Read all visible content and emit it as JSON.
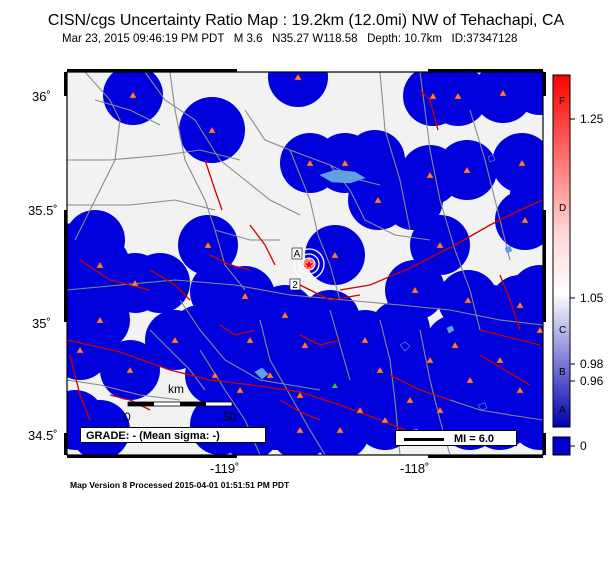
{
  "header": {
    "title": "CISN/cgs Uncertainty Ratio Map : 19.2km (12.0mi) NW of Tehachapi, CA",
    "subtitle": "Mar 23, 2015 09:46:19 PM PDT   M 3.6   N35.27 W118.58   Depth: 10.7km   ID:37347128"
  },
  "map": {
    "lat_labels": [
      "36˚",
      "35.5˚",
      "35˚",
      "34.5˚"
    ],
    "lon_labels": [
      "-119˚",
      "-118˚"
    ],
    "grade_box": "GRADE: - (Mean sigma: -)",
    "mi_legend": "MI = 6.0",
    "scale_bar": {
      "unit": "km",
      "ticks": [
        "0",
        "50"
      ]
    },
    "epicenter_labels": [
      "A",
      "2"
    ]
  },
  "colorbar": {
    "values": [
      "1.25",
      "1.05",
      "0.98",
      "0.96",
      "0"
    ],
    "grades": [
      "F",
      "D",
      "C",
      "B",
      "A"
    ],
    "colors": {
      "low": "#0000cc",
      "mid": "#ffffff",
      "high": "#ff0000"
    }
  },
  "footer": "Map Version 8 Processed 2015-04-01 01:51:51 PM PDT",
  "colors": {
    "station": "#ff7a4a",
    "fault": "#cc0000",
    "road": "#888888",
    "water": "#5fa0e0",
    "coverage": "#0000dd"
  }
}
